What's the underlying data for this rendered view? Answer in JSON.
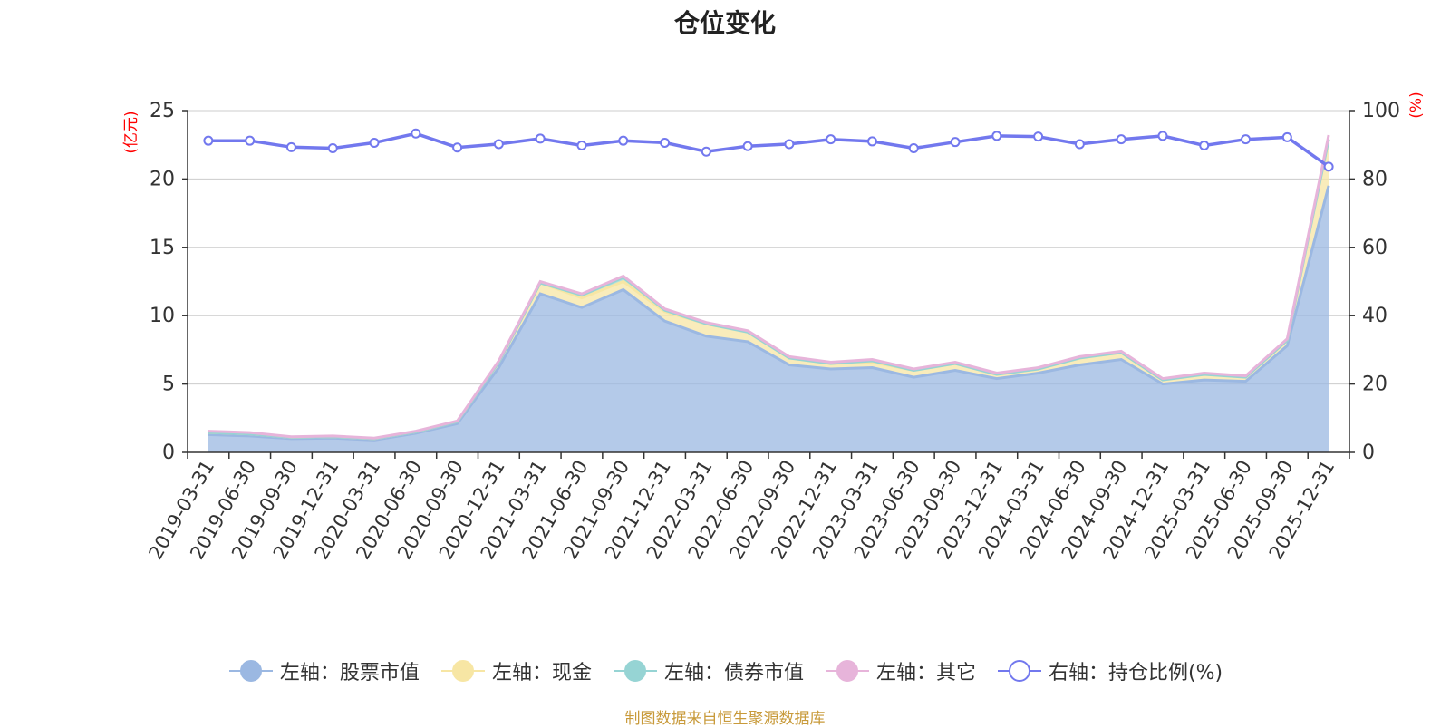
{
  "title": "仓位变化",
  "source": "制图数据来自恒生聚源数据库",
  "colors": {
    "stock": "#9bb8e2",
    "cash": "#f7e6a4",
    "bond": "#96d4d4",
    "other": "#e7b4da",
    "ratio": "#7278ee",
    "axis_unit": "#ff0000",
    "grid": "#cccccc",
    "axis": "#333333"
  },
  "chart_data": {
    "type": "area",
    "title": "仓位变化",
    "categories": [
      "2019-03-31",
      "2019-06-30",
      "2019-09-30",
      "2019-12-31",
      "2020-03-31",
      "2020-06-30",
      "2020-09-30",
      "2020-12-31",
      "2021-03-31",
      "2021-06-30",
      "2021-09-30",
      "2021-12-31",
      "2022-03-31",
      "2022-06-30",
      "2022-09-30",
      "2022-12-31",
      "2023-03-31",
      "2023-06-30",
      "2023-09-30",
      "2023-12-31",
      "2024-03-31",
      "2024-06-30",
      "2024-09-30",
      "2024-12-31",
      "2025-03-31",
      "2025-06-30",
      "2025-09-30",
      "2025-12-31"
    ],
    "left_axis": {
      "label": "(亿元)",
      "ylim": [
        0,
        25
      ],
      "ticks": [
        0,
        5,
        10,
        15,
        20,
        25
      ]
    },
    "right_axis": {
      "label": "(%)",
      "ylim": [
        0,
        100
      ],
      "ticks": [
        0,
        20,
        40,
        60,
        80,
        100
      ]
    },
    "series": [
      {
        "key": "stock",
        "name": "左轴：股票市值",
        "axis": "left",
        "values": [
          1.3,
          1.2,
          1.0,
          1.05,
          0.9,
          1.4,
          2.1,
          6.2,
          11.6,
          10.6,
          11.9,
          9.6,
          8.5,
          8.1,
          6.4,
          6.1,
          6.2,
          5.5,
          6.0,
          5.4,
          5.8,
          6.4,
          6.8,
          5.0,
          5.3,
          5.2,
          7.8,
          19.5
        ]
      },
      {
        "key": "cash",
        "name": "左轴：现金",
        "axis": "left",
        "values": [
          0.15,
          0.15,
          0.1,
          0.1,
          0.1,
          0.1,
          0.15,
          0.4,
          0.8,
          0.7,
          0.6,
          0.7,
          0.9,
          0.7,
          0.5,
          0.4,
          0.4,
          0.5,
          0.5,
          0.3,
          0.3,
          0.5,
          0.5,
          0.3,
          0.4,
          0.3,
          0.4,
          3.4
        ]
      },
      {
        "key": "bond",
        "name": "左轴：债券市值",
        "axis": "left",
        "values": [
          0,
          0,
          0,
          0,
          0,
          0,
          0,
          0,
          0,
          0.2,
          0.3,
          0.1,
          0,
          0,
          0,
          0,
          0.1,
          0,
          0,
          0,
          0,
          0,
          0,
          0,
          0,
          0,
          0,
          0
        ]
      },
      {
        "key": "other",
        "name": "左轴：其它",
        "axis": "left",
        "values": [
          0.1,
          0.1,
          0.05,
          0.05,
          0.05,
          0.05,
          0.05,
          0.1,
          0.1,
          0.1,
          0.1,
          0.1,
          0.1,
          0.1,
          0.1,
          0.1,
          0.1,
          0.1,
          0.1,
          0.1,
          0.1,
          0.1,
          0.1,
          0.1,
          0.1,
          0.1,
          0.1,
          0.3
        ]
      },
      {
        "key": "ratio",
        "name": "右轴：持仓比例(%)",
        "axis": "right",
        "values": [
          91.2,
          91.2,
          89.3,
          89.0,
          90.6,
          93.3,
          89.2,
          90.2,
          91.8,
          89.8,
          91.2,
          90.6,
          88.0,
          89.6,
          90.2,
          91.6,
          91.0,
          89.0,
          90.8,
          92.6,
          92.4,
          90.2,
          91.6,
          92.6,
          89.8,
          91.6,
          92.2,
          83.6
        ]
      }
    ]
  }
}
